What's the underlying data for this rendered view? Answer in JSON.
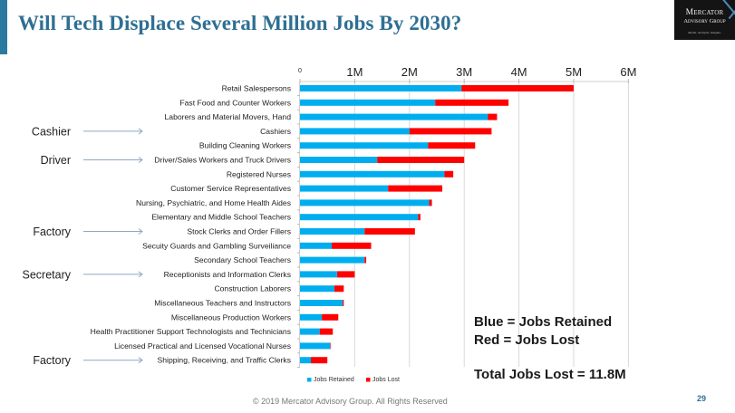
{
  "slide": {
    "title": "Will Tech Displace Several Million Jobs By 2030?",
    "logo": {
      "line1": "Mercator",
      "line2": "Advisory Group",
      "line3": "Media. Analysis. Insights."
    },
    "notes": [
      "Blue = Jobs Retained",
      "Red = Jobs Lost",
      "Total Jobs Lost = 11.8M"
    ],
    "footer": "© 2019 Mercator Advisory Group. All Rights Reserved",
    "page_number": "29",
    "colors": {
      "retained": "#00aeef",
      "lost": "#ff0000",
      "title": "#2e6f93",
      "accent": "#2a7aa0",
      "arrow": "#8fa7c8",
      "grid": "#d9d9d9"
    }
  },
  "chart_data": {
    "type": "bar",
    "orientation": "horizontal",
    "stacked": true,
    "title": "",
    "xlabel": "",
    "ylabel": "",
    "xlim": [
      0,
      6
    ],
    "x_unit": "millions of jobs",
    "x_ticks": [
      "0",
      "1M",
      "2M",
      "3M",
      "4M",
      "5M",
      "6M"
    ],
    "grid": true,
    "legend": {
      "placement": "bottom-left",
      "entries": [
        "Jobs Retained",
        "Jobs Lost"
      ]
    },
    "categories": [
      "Retail Salespersons",
      "Fast Food and Counter Workers",
      "Laborers and Material Movers, Hand",
      "Cashiers",
      "Building Cleaning Workers",
      "Driver/Sales Workers and Truck Drivers",
      "Registered Nurses",
      "Customer Service Representatives",
      "Nursing, Psychiatric, and Home Health Aides",
      "Elementary and Middle School Teachers",
      "Stock Clerks and Order Fillers",
      "Secuity Guards and Gambling Surveiliance",
      "Secondary School Teachers",
      "Receptionists and Information Clerks",
      "Construction Laborers",
      "Miscellaneous Teachers and Instructors",
      "Miscellaneous Production Workers",
      "Health Practitioner Support Technologists and Technicians",
      "Licensed Practical and Licensed Vocational Nurses",
      "Shipping, Receiving, and Traffic Clerks"
    ],
    "series": [
      {
        "name": "Jobs Retained",
        "values": [
          2.95,
          2.47,
          3.43,
          2.0,
          2.34,
          1.41,
          2.64,
          1.61,
          2.36,
          2.16,
          1.18,
          0.58,
          1.18,
          0.68,
          0.63,
          0.78,
          0.4,
          0.36,
          0.55,
          0.2
        ]
      },
      {
        "name": "Jobs Lost",
        "values": [
          2.05,
          1.34,
          0.17,
          1.5,
          0.86,
          1.59,
          0.16,
          0.99,
          0.05,
          0.04,
          0.92,
          0.72,
          0.03,
          0.32,
          0.17,
          0.02,
          0.3,
          0.24,
          0.01,
          0.3
        ]
      }
    ],
    "annotations": [
      {
        "label": "Cashier",
        "points_to": "Cashiers"
      },
      {
        "label": "Driver",
        "points_to": "Driver/Sales Workers and Truck Drivers"
      },
      {
        "label": "Factory",
        "points_to": "Stock Clerks and Order Fillers"
      },
      {
        "label": "Secretary",
        "points_to": "Receptionists and Information Clerks"
      },
      {
        "label": "Factory",
        "points_to": "Shipping, Receiving, and Traffic Clerks"
      }
    ]
  }
}
